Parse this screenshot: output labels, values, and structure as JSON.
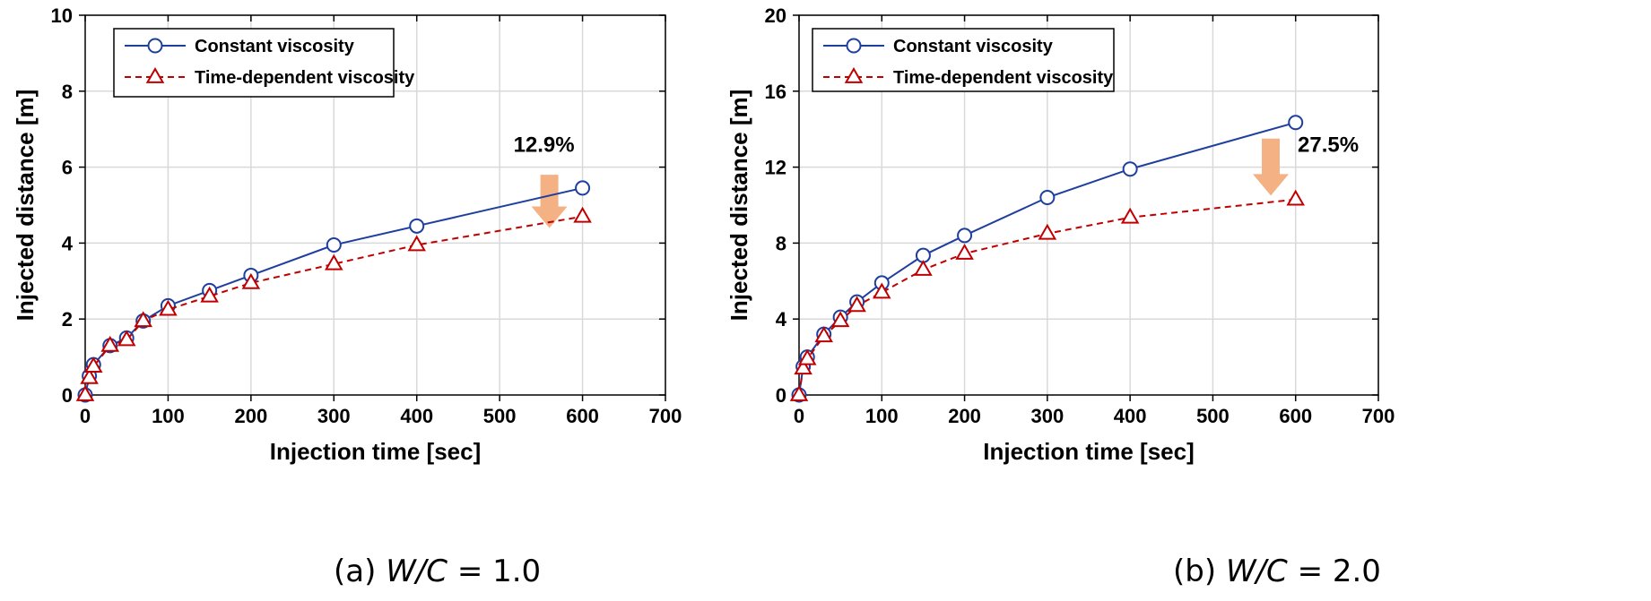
{
  "chart_data": [
    {
      "type": "line",
      "caption": {
        "prefix": "(a)",
        "variable": "W/C",
        "rest": " = 1.0"
      },
      "xlabel": "Injection time [sec]",
      "ylabel": "Injected distance [m]",
      "xlim": [
        0,
        700
      ],
      "ylim": [
        0,
        10
      ],
      "xticks": [
        0,
        100,
        200,
        300,
        400,
        500,
        600,
        700
      ],
      "yticks": [
        0,
        2,
        4,
        6,
        8,
        10
      ],
      "grid": true,
      "legend_position": "top-left",
      "series": [
        {
          "name": "Constant viscosity",
          "color": "#1f3f9f",
          "marker": "circle",
          "linestyle": "solid",
          "points": [
            [
              0,
              0
            ],
            [
              5,
              0.5
            ],
            [
              10,
              0.8
            ],
            [
              30,
              1.3
            ],
            [
              50,
              1.5
            ],
            [
              70,
              1.95
            ],
            [
              100,
              2.35
            ],
            [
              150,
              2.75
            ],
            [
              200,
              3.15
            ],
            [
              300,
              3.95
            ],
            [
              400,
              4.45
            ],
            [
              600,
              5.45
            ]
          ]
        },
        {
          "name": "Time-dependent viscosity",
          "color": "#c00000",
          "marker": "triangle",
          "linestyle": "dashed",
          "points": [
            [
              0,
              0
            ],
            [
              5,
              0.45
            ],
            [
              10,
              0.75
            ],
            [
              30,
              1.3
            ],
            [
              50,
              1.45
            ],
            [
              70,
              1.95
            ],
            [
              100,
              2.25
            ],
            [
              150,
              2.6
            ],
            [
              200,
              2.95
            ],
            [
              300,
              3.45
            ],
            [
              400,
              3.95
            ],
            [
              600,
              4.7
            ]
          ]
        }
      ],
      "annotations": [
        {
          "text": "12.9%",
          "arrow": "down",
          "arrow_color": "#f4b183",
          "at_x": 560,
          "arrow_from": 5.8,
          "arrow_to": 4.4,
          "text_y": 6.4,
          "text_side": "left"
        }
      ]
    },
    {
      "type": "line",
      "caption": {
        "prefix": "(b)",
        "variable": "W/C",
        "rest": " = 2.0"
      },
      "xlabel": "Injection time [sec]",
      "ylabel": "Injected distance [m]",
      "xlim": [
        0,
        700
      ],
      "ylim": [
        0,
        20
      ],
      "xticks": [
        0,
        100,
        200,
        300,
        400,
        500,
        600,
        700
      ],
      "yticks": [
        0,
        4,
        8,
        12,
        16,
        20
      ],
      "grid": true,
      "legend_position": "top-left",
      "series": [
        {
          "name": "Constant viscosity",
          "color": "#1f3f9f",
          "marker": "circle",
          "linestyle": "solid",
          "points": [
            [
              0,
              0
            ],
            [
              5,
              1.5
            ],
            [
              10,
              2.0
            ],
            [
              30,
              3.2
            ],
            [
              50,
              4.1
            ],
            [
              70,
              4.9
            ],
            [
              100,
              5.9
            ],
            [
              150,
              7.35
            ],
            [
              200,
              8.4
            ],
            [
              300,
              10.4
            ],
            [
              400,
              11.9
            ],
            [
              600,
              14.35
            ]
          ]
        },
        {
          "name": "Time-dependent viscosity",
          "color": "#c00000",
          "marker": "triangle",
          "linestyle": "dashed",
          "points": [
            [
              0,
              0
            ],
            [
              5,
              1.4
            ],
            [
              10,
              1.9
            ],
            [
              30,
              3.1
            ],
            [
              50,
              3.9
            ],
            [
              70,
              4.7
            ],
            [
              100,
              5.4
            ],
            [
              150,
              6.6
            ],
            [
              200,
              7.45
            ],
            [
              300,
              8.5
            ],
            [
              400,
              9.35
            ],
            [
              600,
              10.3
            ]
          ]
        }
      ],
      "annotations": [
        {
          "text": "27.5%",
          "arrow": "down",
          "arrow_color": "#f4b183",
          "at_x": 570,
          "arrow_from": 13.5,
          "arrow_to": 10.5,
          "text_y": 12.8,
          "text_side": "right"
        }
      ]
    }
  ]
}
